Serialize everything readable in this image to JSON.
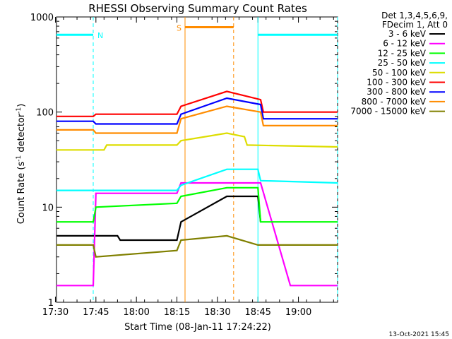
{
  "chart_data": {
    "type": "line",
    "title": "RHESSI Observing Summary Count Rates",
    "xlabel": "Start Time (08-Jan-11 17:24:22)",
    "ylabel_main": "Count Rate (s",
    "ylabel_sup1": "-1",
    "ylabel_mid": " detector",
    "ylabel_sup2": "-1",
    "ylabel_end": ")",
    "yscale": "log",
    "ylim": [
      1,
      1000
    ],
    "xlim_minutes": [
      17.4,
      121.5
    ],
    "x_unit": "minutes after 17:13",
    "x_ticks": [
      {
        "value": 17,
        "label": "17:30"
      },
      {
        "value": 32,
        "label": "17:45"
      },
      {
        "value": 47,
        "label": "18:00"
      },
      {
        "value": 62,
        "label": "18:15"
      },
      {
        "value": 77,
        "label": "18:30"
      },
      {
        "value": 92,
        "label": "18:45"
      },
      {
        "value": 107,
        "label": "19:00"
      }
    ],
    "y_ticks": [
      {
        "value": 1,
        "label": "1"
      },
      {
        "value": 10,
        "label": "10"
      },
      {
        "value": 100,
        "label": "100"
      },
      {
        "value": 1000,
        "label": "1000"
      }
    ],
    "legend_header_1": "Det 1,3,4,5,6,9,",
    "legend_header_2": "FDecim 1, Att 0",
    "legend_position": "right",
    "series": [
      {
        "name": "3 - 6 keV",
        "color": "#000000",
        "x": [
          17.4,
          40,
          41,
          62,
          63.5,
          80.5,
          92,
          93,
          121.5
        ],
        "y": [
          5,
          5,
          4.5,
          4.5,
          7,
          13,
          13,
          7,
          null
        ]
      },
      {
        "name": "6 - 12 keV",
        "color": "#ff00ff",
        "x": [
          17.4,
          31,
          32,
          62,
          63.5,
          80.5,
          92,
          93,
          104,
          121.5
        ],
        "y": [
          1.5,
          1.5,
          14,
          14,
          18,
          18,
          18,
          18,
          1.5,
          1.5
        ]
      },
      {
        "name": "12 - 25 keV",
        "color": "#00ff00",
        "x": [
          17.4,
          31,
          32,
          62,
          63.5,
          80.5,
          92,
          93,
          121.5
        ],
        "y": [
          7,
          7,
          10,
          11,
          13,
          16,
          16,
          7,
          7
        ]
      },
      {
        "name": "25 - 50 keV",
        "color": "#00ffff",
        "x": [
          17.4,
          62,
          63.5,
          80.5,
          92,
          93,
          121.5
        ],
        "y": [
          15,
          15,
          17,
          25,
          25,
          19,
          18
        ]
      },
      {
        "name": "50 - 100 keV",
        "color": "#dddd00",
        "x": [
          17.4,
          35,
          36,
          62,
          63.5,
          80.5,
          87,
          88,
          121.5
        ],
        "y": [
          40,
          40,
          45,
          45,
          50,
          60,
          55,
          45,
          43
        ]
      },
      {
        "name": "100 - 300 keV",
        "color": "#ff0000",
        "x": [
          17.4,
          31,
          32,
          62,
          63.5,
          80.5,
          93,
          94,
          121.5
        ],
        "y": [
          90,
          90,
          95,
          95,
          115,
          165,
          135,
          100,
          100
        ]
      },
      {
        "name": "300 - 800 keV",
        "color": "#0000ff",
        "x": [
          17.4,
          31,
          32,
          62,
          63.5,
          80.5,
          93,
          94,
          121.5
        ],
        "y": [
          80,
          80,
          75,
          75,
          95,
          140,
          120,
          85,
          85
        ]
      },
      {
        "name": "800 - 7000 keV",
        "color": "#ff8c00",
        "x": [
          17.4,
          31,
          32,
          62,
          63.5,
          80.5,
          93,
          94,
          121.5
        ],
        "y": [
          65,
          65,
          60,
          60,
          85,
          115,
          100,
          72,
          72
        ]
      },
      {
        "name": "7000 - 15000 keV",
        "color": "#808000",
        "x": [
          17.4,
          31,
          32,
          62,
          63.5,
          80.5,
          92,
          93,
          121.5
        ],
        "y": [
          4,
          4,
          3,
          3.5,
          4.5,
          5,
          4,
          4,
          4
        ]
      }
    ],
    "annotations": [
      {
        "label": "N",
        "color": "#00ffff",
        "x": [
          17.4,
          31
        ],
        "y": 650
      },
      {
        "label": "S",
        "color": "#ff8c00",
        "x": [
          65,
          83
        ],
        "y": 780
      },
      {
        "label": "",
        "color": "#00ffff",
        "x": [
          92,
          121.5
        ],
        "y": 650
      }
    ],
    "vlines": [
      {
        "x": 31,
        "color": "#00ffff",
        "style": "dashed"
      },
      {
        "x": 65,
        "color": "#ff8c00",
        "style": "solid"
      },
      {
        "x": 83,
        "color": "#ff8c00",
        "style": "dashed"
      },
      {
        "x": 92,
        "color": "#00ffff",
        "style": "solid"
      },
      {
        "x": 121.5,
        "color": "#00ffff",
        "style": "dashed"
      }
    ],
    "footer_timestamp": "13-Oct-2021 15:45"
  }
}
